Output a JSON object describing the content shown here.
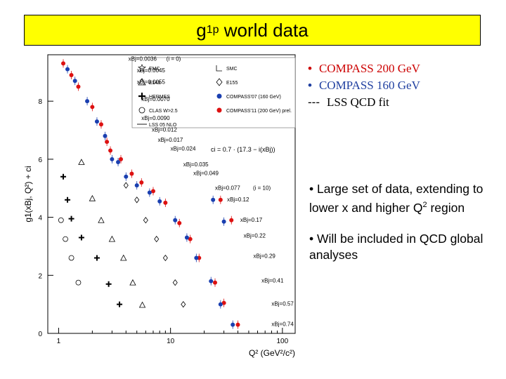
{
  "slide": {
    "title_main": "g",
    "title_sub": "1",
    "title_sup": "p",
    "title_rest": " world data",
    "legend_items": [
      {
        "text": "COMPASS 200 GeV",
        "color": "#cc0000",
        "marker": "•"
      },
      {
        "text": "COMPASS 160 GeV",
        "color": "#1f3fa0",
        "marker": "•"
      },
      {
        "text": "LSS QCD fit",
        "color": "#000000",
        "marker": "---"
      }
    ],
    "bullet1_text": "• Large set of data, extending to lower x and higher Q",
    "bullet1_sup": "2",
    "bullet1_end": " region",
    "bullet2_text": "• Will be included in QCD global analyses"
  },
  "chart_data": {
    "type": "scatter",
    "xscale": "log",
    "xlim": [
      0.8,
      130
    ],
    "ylim": [
      0,
      9.6
    ],
    "yticks": [
      0,
      2,
      4,
      6,
      8
    ],
    "xticks": [
      1,
      10,
      100
    ],
    "ylabel": "g1(xBj, Q²) + ci",
    "xlabel": "Q² (GeV²/c²)",
    "legend": {
      "placement": "top-right",
      "entries": [
        {
          "name": "EMC",
          "marker": "star"
        },
        {
          "name": "SMC",
          "marker": "L"
        },
        {
          "name": "E143",
          "marker": "triangle"
        },
        {
          "name": "E155",
          "marker": "diamond"
        },
        {
          "name": "HERMES",
          "marker": "cross"
        },
        {
          "name": "COMPASS'07 (160 GeV)",
          "marker": "blue-dot"
        },
        {
          "name": "CLAS W>2.5",
          "marker": "circle"
        },
        {
          "name": "COMPASS'11 (200 GeV) prel.",
          "marker": "red-dot"
        },
        {
          "name": "LSS 05 NLO",
          "marker": "line"
        }
      ]
    },
    "formula": "ci = 0.7 · (17.3 − i(xBj))",
    "bin_labels": [
      {
        "text": "xBj=0.0036",
        "x": 4.2,
        "y": 9.4,
        "note": "(i = 0)"
      },
      {
        "text": "xBj=0.0045",
        "x": 5.0,
        "y": 9.0
      },
      {
        "text": "xBj=0.0055",
        "x": 5.0,
        "y": 8.6
      },
      {
        "text": "xBj=0.0070",
        "x": 5.5,
        "y": 8.0
      },
      {
        "text": "xBj=0.0090",
        "x": 5.5,
        "y": 7.35
      },
      {
        "text": "xBj=0.012",
        "x": 6.8,
        "y": 6.95
      },
      {
        "text": "xBj=0.017",
        "x": 7.7,
        "y": 6.6
      },
      {
        "text": "xBj=0.024",
        "x": 10.0,
        "y": 6.3
      },
      {
        "text": "xBj=0.035",
        "x": 13.0,
        "y": 5.75
      },
      {
        "text": "xBj=0.049",
        "x": 16.0,
        "y": 5.45
      },
      {
        "text": "xBj=0.077",
        "x": 25.0,
        "y": 4.95,
        "note": "(i = 10)"
      },
      {
        "text": "xBj=0.12",
        "x": 32.0,
        "y": 4.55
      },
      {
        "text": "xBj=0.17",
        "x": 42.0,
        "y": 3.85
      },
      {
        "text": "xBj=0.22",
        "x": 45.0,
        "y": 3.3
      },
      {
        "text": "xBj=0.29",
        "x": 55.0,
        "y": 2.6
      },
      {
        "text": "xBj=0.41",
        "x": 65.0,
        "y": 1.75
      },
      {
        "text": "xBj=0.57",
        "x": 80.0,
        "y": 0.95
      },
      {
        "text": "xBj=0.74",
        "x": 80.0,
        "y": 0.25
      }
    ],
    "series": [
      {
        "name": "COMPASS'11 (200 GeV) prel.",
        "color": "#dd1111",
        "points": [
          [
            1.1,
            9.3
          ],
          [
            1.3,
            8.9
          ],
          [
            1.5,
            8.5
          ],
          [
            2.0,
            7.8
          ],
          [
            2.4,
            7.2
          ],
          [
            2.7,
            6.6
          ],
          [
            2.9,
            6.3
          ],
          [
            3.6,
            6.0
          ],
          [
            4.5,
            5.5
          ],
          [
            5.5,
            5.2
          ],
          [
            7.0,
            4.9
          ],
          [
            9.0,
            4.5
          ],
          [
            12.0,
            3.8
          ],
          [
            15.0,
            3.25
          ],
          [
            18.0,
            2.6
          ],
          [
            25.0,
            1.75
          ],
          [
            30.0,
            1.05
          ],
          [
            40.0,
            0.3
          ],
          [
            28.0,
            4.6
          ],
          [
            35.0,
            3.9
          ]
        ]
      },
      {
        "name": "COMPASS'07 (160 GeV)",
        "color": "#1a3fb0",
        "points": [
          [
            1.2,
            9.1
          ],
          [
            1.4,
            8.7
          ],
          [
            1.8,
            8.0
          ],
          [
            2.2,
            7.3
          ],
          [
            2.6,
            6.8
          ],
          [
            3.0,
            6.0
          ],
          [
            3.4,
            5.9
          ],
          [
            4.0,
            5.4
          ],
          [
            5.0,
            5.1
          ],
          [
            6.5,
            4.85
          ],
          [
            8.0,
            4.55
          ],
          [
            11.0,
            3.9
          ],
          [
            14.0,
            3.3
          ],
          [
            17.0,
            2.6
          ],
          [
            23.0,
            1.8
          ],
          [
            28.0,
            1.0
          ],
          [
            36.0,
            0.3
          ],
          [
            24.0,
            4.6
          ],
          [
            30.0,
            3.85
          ]
        ]
      },
      {
        "name": "HERMES",
        "color": "#000000",
        "points": [
          [
            1.1,
            5.4
          ],
          [
            1.2,
            4.6
          ],
          [
            1.3,
            3.95
          ],
          [
            1.6,
            3.3
          ],
          [
            2.2,
            2.6
          ],
          [
            2.8,
            1.7
          ],
          [
            3.5,
            1.0
          ]
        ]
      },
      {
        "name": "E143",
        "color": "#000000",
        "points": [
          [
            1.6,
            5.9
          ],
          [
            2.0,
            4.65
          ],
          [
            2.4,
            3.9
          ],
          [
            3.0,
            3.25
          ],
          [
            3.8,
            2.6
          ],
          [
            4.6,
            1.75
          ],
          [
            5.6,
            0.98
          ]
        ]
      },
      {
        "name": "E155",
        "color": "#000000",
        "points": [
          [
            4.0,
            5.1
          ],
          [
            5.0,
            4.6
          ],
          [
            6.0,
            3.9
          ],
          [
            7.5,
            3.25
          ],
          [
            9.0,
            2.6
          ],
          [
            11.0,
            1.75
          ],
          [
            13.0,
            1.0
          ]
        ]
      },
      {
        "name": "CLAS W>2.5",
        "color": "#000000",
        "points": [
          [
            1.05,
            3.9
          ],
          [
            1.15,
            3.25
          ],
          [
            1.3,
            2.6
          ],
          [
            1.5,
            1.75
          ]
        ]
      }
    ]
  }
}
